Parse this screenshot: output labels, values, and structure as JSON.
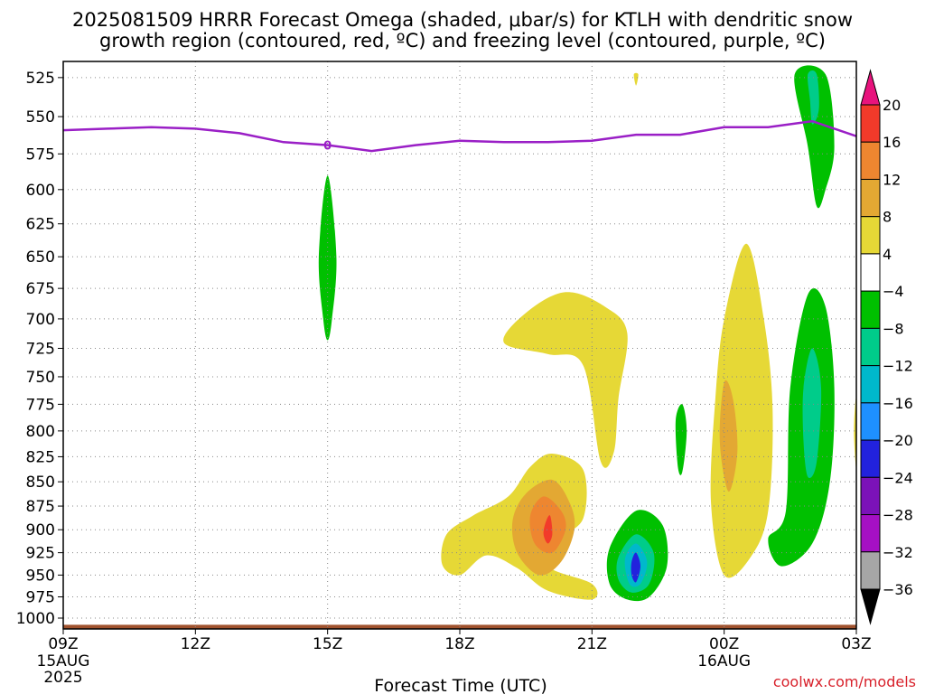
{
  "title_line1": "2025081509 HRRR Forecast Omega (shaded, μbar/s) for KTLH with dendritic snow",
  "title_line2": "growth region (contoured, red, ºC) and freezing level (contoured, purple, ºC)",
  "credit": "coolwx.com/models",
  "colors": {
    "freezing_line": "#9a1fc6",
    "ground": "#a0522d",
    "grid": "#888888"
  },
  "chart_data": {
    "type": "heatmap",
    "xlabel": "Forecast Time (UTC)",
    "ylabel": "",
    "x_ticks": [
      {
        "hour": 0,
        "label": "09Z",
        "sub1": "15AUG",
        "sub2": "2025"
      },
      {
        "hour": 3,
        "label": "12Z",
        "sub1": "",
        "sub2": ""
      },
      {
        "hour": 6,
        "label": "15Z",
        "sub1": "",
        "sub2": ""
      },
      {
        "hour": 9,
        "label": "18Z",
        "sub1": "",
        "sub2": ""
      },
      {
        "hour": 12,
        "label": "21Z",
        "sub1": "",
        "sub2": ""
      },
      {
        "hour": 15,
        "label": "00Z",
        "sub1": "16AUG",
        "sub2": ""
      },
      {
        "hour": 18,
        "label": "03Z",
        "sub1": "",
        "sub2": ""
      }
    ],
    "xlim_hours": [
      0,
      18
    ],
    "y_ticks": [
      525,
      550,
      575,
      600,
      625,
      650,
      675,
      700,
      725,
      750,
      775,
      800,
      825,
      850,
      875,
      900,
      925,
      950,
      975,
      1000
    ],
    "ylim_hPa": [
      515,
      1013
    ],
    "y_scale": "log-pressure (inverted)",
    "grid": true,
    "colorbar": {
      "labels": [
        "20",
        "16",
        "12",
        "8",
        "4",
        "−4",
        "−8",
        "−12",
        "−16",
        "−20",
        "−24",
        "−28",
        "−32",
        "−36"
      ],
      "colors": [
        "#e8137d",
        "#f23a2a",
        "#ee8630",
        "#e3a833",
        "#e6d836",
        "#ffffff",
        "#00c000",
        "#00cc8a",
        "#00b8cc",
        "#1e90ff",
        "#2222dd",
        "#7b12b8",
        "#a510c4",
        "#a6a6a6",
        "#000000"
      ]
    },
    "freezing_level_label": "0",
    "freezing_level": {
      "hours": [
        0.0,
        1.0,
        2.0,
        3.0,
        4.0,
        5.0,
        6.0,
        7.0,
        8.0,
        9.0,
        10.0,
        11.0,
        12.0,
        13.0,
        14.0,
        15.0,
        16.0,
        17.0,
        18.0
      ],
      "hPa": [
        559,
        558,
        557,
        558,
        561,
        567,
        569,
        573,
        569,
        566,
        567,
        567,
        566,
        562,
        562,
        557,
        557,
        553,
        563
      ]
    },
    "omega_regions": [
      {
        "level": "-8",
        "hours": [
          [
            5.8,
            650
          ],
          [
            6.0,
            590
          ],
          [
            6.2,
            650
          ],
          [
            6.1,
            700
          ],
          [
            6.0,
            718
          ],
          [
            5.9,
            700
          ]
        ]
      },
      {
        "level": "4",
        "hours": [
          [
            10.0,
            720
          ],
          [
            10.5,
            695
          ],
          [
            11.4,
            678
          ],
          [
            12.3,
            690
          ],
          [
            12.8,
            712
          ],
          [
            12.6,
            770
          ],
          [
            12.5,
            820
          ],
          [
            12.2,
            830
          ],
          [
            11.8,
            740
          ],
          [
            11.0,
            730
          ]
        ]
      },
      {
        "level": "4",
        "hours": [
          [
            15.0,
            700
          ],
          [
            15.5,
            640
          ],
          [
            15.9,
            700
          ],
          [
            16.1,
            780
          ],
          [
            16.0,
            880
          ],
          [
            15.6,
            930
          ],
          [
            15.0,
            950
          ],
          [
            14.7,
            870
          ],
          [
            14.8,
            770
          ]
        ]
      },
      {
        "level": "4",
        "hours": [
          [
            8.7,
            905
          ],
          [
            9.3,
            885
          ],
          [
            10.1,
            865
          ],
          [
            10.6,
            835
          ],
          [
            11.1,
            822
          ],
          [
            11.8,
            838
          ],
          [
            11.8,
            888
          ],
          [
            11.2,
            912
          ],
          [
            11.0,
            940
          ],
          [
            12.0,
            960
          ],
          [
            12.0,
            978
          ],
          [
            11.0,
            968
          ],
          [
            10.3,
            942
          ],
          [
            9.6,
            928
          ],
          [
            9.0,
            950
          ],
          [
            8.6,
            938
          ]
        ]
      },
      {
        "level": "8",
        "hours": [
          [
            10.2,
            890
          ],
          [
            10.5,
            862
          ],
          [
            11.1,
            848
          ],
          [
            11.5,
            872
          ],
          [
            11.6,
            900
          ],
          [
            11.3,
            935
          ],
          [
            10.8,
            950
          ],
          [
            10.3,
            925
          ]
        ]
      },
      {
        "level": "12",
        "hours": [
          [
            10.6,
            885
          ],
          [
            10.9,
            865
          ],
          [
            11.3,
            880
          ],
          [
            11.4,
            900
          ],
          [
            11.1,
            925
          ],
          [
            10.7,
            915
          ]
        ]
      },
      {
        "level": "16",
        "hours": [
          [
            10.95,
            892
          ],
          [
            11.05,
            885
          ],
          [
            11.1,
            905
          ],
          [
            11.0,
            915
          ],
          [
            10.9,
            905
          ]
        ]
      },
      {
        "level": "8",
        "hours": [
          [
            15.0,
            755
          ],
          [
            15.2,
            770
          ],
          [
            15.3,
            820
          ],
          [
            15.1,
            860
          ],
          [
            14.9,
            810
          ]
        ]
      },
      {
        "level": "-8",
        "hours": [
          [
            12.4,
            920
          ],
          [
            13.0,
            880
          ],
          [
            13.6,
            895
          ],
          [
            13.7,
            940
          ],
          [
            13.3,
            975
          ],
          [
            12.8,
            978
          ],
          [
            12.4,
            960
          ]
        ]
      },
      {
        "level": "-12",
        "hours": [
          [
            12.6,
            930
          ],
          [
            13.0,
            905
          ],
          [
            13.4,
            925
          ],
          [
            13.3,
            960
          ],
          [
            12.9,
            970
          ],
          [
            12.6,
            955
          ]
        ]
      },
      {
        "level": "-16",
        "hours": [
          [
            12.75,
            932
          ],
          [
            13.0,
            915
          ],
          [
            13.25,
            935
          ],
          [
            13.1,
            960
          ],
          [
            12.85,
            960
          ]
        ]
      },
      {
        "level": "-24",
        "hours": [
          [
            12.9,
            935
          ],
          [
            13.0,
            925
          ],
          [
            13.1,
            940
          ],
          [
            13.0,
            958
          ],
          [
            12.9,
            950
          ]
        ]
      },
      {
        "level": "-8",
        "hours": [
          [
            13.9,
            790
          ],
          [
            14.05,
            775
          ],
          [
            14.15,
            800
          ],
          [
            14.05,
            840
          ],
          [
            13.95,
            835
          ]
        ]
      },
      {
        "level": "-8",
        "hours": [
          [
            16.5,
            760
          ],
          [
            16.9,
            680
          ],
          [
            17.3,
            690
          ],
          [
            17.5,
            760
          ],
          [
            17.4,
            850
          ],
          [
            17.0,
            915
          ],
          [
            16.3,
            940
          ],
          [
            16.0,
            910
          ],
          [
            16.4,
            880
          ]
        ]
      },
      {
        "level": "-12",
        "hours": [
          [
            16.8,
            760
          ],
          [
            17.0,
            725
          ],
          [
            17.2,
            760
          ],
          [
            17.1,
            830
          ],
          [
            16.9,
            845
          ],
          [
            16.8,
            810
          ]
        ]
      },
      {
        "level": "-8",
        "hours": [
          [
            16.6,
            523
          ],
          [
            17.3,
            523
          ],
          [
            17.5,
            570
          ],
          [
            17.3,
            600
          ],
          [
            17.1,
            612
          ],
          [
            16.9,
            570
          ]
        ]
      },
      {
        "level": "-12",
        "hours": [
          [
            16.9,
            523
          ],
          [
            17.1,
            523
          ],
          [
            17.15,
            545
          ],
          [
            17.0,
            555
          ],
          [
            16.95,
            540
          ]
        ]
      },
      {
        "level": "4",
        "hours": [
          [
            17.95,
            790
          ],
          [
            18.0,
            770
          ],
          [
            18.0,
            835
          ],
          [
            17.95,
            810
          ]
        ]
      },
      {
        "level": "4",
        "hours": [
          [
            12.95,
            523
          ],
          [
            13.05,
            523
          ],
          [
            13.0,
            530
          ]
        ]
      }
    ],
    "ground_hPa": 1008
  }
}
